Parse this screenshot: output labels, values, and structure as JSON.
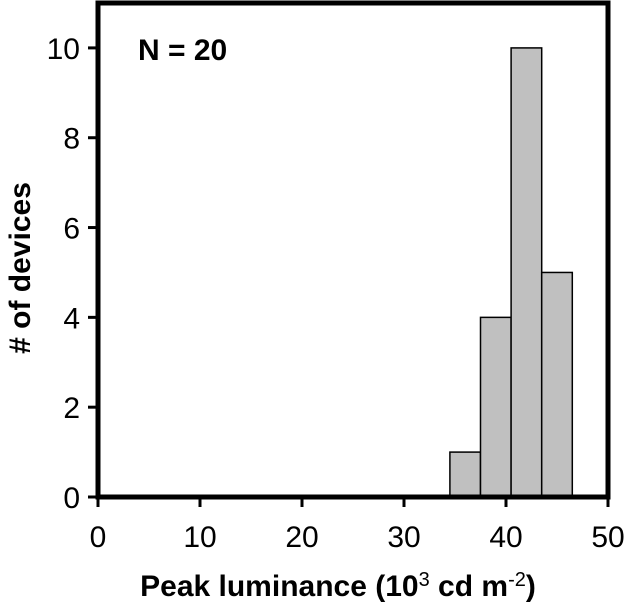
{
  "chart_data": {
    "type": "bar",
    "subtype": "histogram",
    "annotation": "N = 20",
    "xlabel": {
      "main": "Peak luminance (10",
      "sup": "3",
      "mid": " cd m",
      "sup2": "-2",
      "end": ")"
    },
    "ylabel": "# of devices",
    "xlim": [
      0,
      50
    ],
    "ylim": [
      0,
      11
    ],
    "xticks": [
      "0",
      "10",
      "20",
      "30",
      "40",
      "50"
    ],
    "xtick_values": [
      0,
      10,
      20,
      30,
      40,
      50
    ],
    "yticks": [
      "0",
      "2",
      "4",
      "6",
      "8",
      "10"
    ],
    "ytick_values": [
      0,
      2,
      4,
      6,
      8,
      10
    ],
    "bins": [
      {
        "from": 34.5,
        "to": 37.5,
        "count": 1
      },
      {
        "from": 37.5,
        "to": 40.5,
        "count": 4
      },
      {
        "from": 40.5,
        "to": 43.5,
        "count": 10
      },
      {
        "from": 43.5,
        "to": 46.5,
        "count": 5
      }
    ],
    "bar_color": "#c0c0c0",
    "bar_edge": "#000000",
    "grid": false,
    "legend": "none"
  }
}
